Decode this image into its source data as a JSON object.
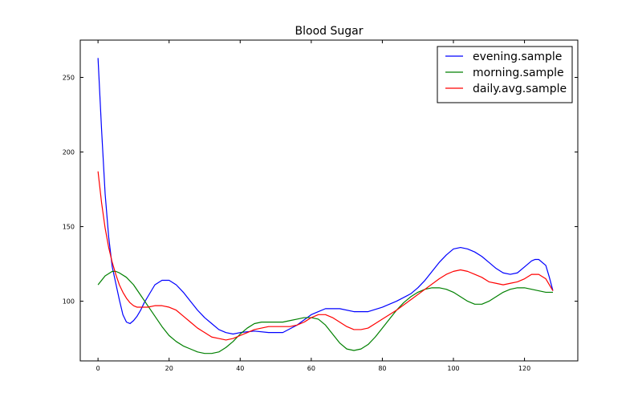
{
  "chart_data": {
    "type": "line",
    "title": "Blood Sugar",
    "xlabel": "",
    "ylabel": "",
    "xlim": [
      -5,
      135
    ],
    "ylim": [
      60,
      275
    ],
    "x_ticks": [
      0,
      20,
      40,
      60,
      80,
      100,
      120
    ],
    "x_tick_labels": [
      "0",
      "20",
      "40",
      "60",
      "80",
      "100",
      "120"
    ],
    "y_ticks": [
      100,
      150,
      200,
      250
    ],
    "y_tick_labels": [
      "100",
      "150",
      "200",
      "250"
    ],
    "grid": false,
    "legend_position": "top-right",
    "series": [
      {
        "name": "evening.sample",
        "color": "#0000ff",
        "x": [
          0,
          1,
          2,
          3,
          4,
          5,
          6,
          7,
          8,
          9,
          10,
          11,
          12,
          13,
          14,
          16,
          18,
          20,
          22,
          24,
          26,
          28,
          30,
          32,
          34,
          36,
          38,
          40,
          44,
          48,
          52,
          56,
          60,
          62,
          64,
          66,
          68,
          72,
          76,
          80,
          84,
          88,
          90,
          92,
          94,
          96,
          98,
          100,
          102,
          104,
          106,
          108,
          110,
          112,
          114,
          116,
          118,
          120,
          122,
          123,
          124,
          126,
          127,
          128
        ],
        "y": [
          263,
          215,
          172,
          143,
          123,
          112,
          101,
          91,
          86,
          85,
          87,
          90,
          94,
          99,
          103,
          111,
          114,
          114,
          111,
          106,
          100,
          94,
          89,
          85,
          81,
          79,
          78,
          79,
          80,
          79,
          79,
          84,
          91,
          93,
          95,
          95,
          95,
          93,
          93,
          96,
          100,
          105,
          109,
          114,
          120,
          126,
          131,
          135,
          136,
          135,
          133,
          130,
          126,
          122,
          119,
          118,
          119,
          123,
          127,
          128,
          128,
          124,
          116,
          107
        ]
      },
      {
        "name": "morning.sample",
        "color": "#008000",
        "x": [
          0,
          2,
          4,
          5,
          6,
          8,
          10,
          12,
          14,
          16,
          18,
          20,
          22,
          24,
          26,
          28,
          30,
          32,
          34,
          36,
          38,
          40,
          42,
          44,
          46,
          48,
          50,
          52,
          54,
          56,
          58,
          60,
          62,
          64,
          66,
          68,
          70,
          72,
          74,
          76,
          78,
          80,
          82,
          84,
          86,
          88,
          90,
          92,
          94,
          96,
          98,
          100,
          102,
          104,
          106,
          108,
          110,
          112,
          114,
          116,
          118,
          120,
          122,
          124,
          126,
          128
        ],
        "y": [
          111,
          117,
          120,
          120,
          119,
          116,
          111,
          104,
          97,
          90,
          83,
          77,
          73,
          70,
          68,
          66,
          65,
          65,
          66,
          69,
          73,
          78,
          82,
          85,
          86,
          86,
          86,
          86,
          87,
          88,
          89,
          89,
          88,
          84,
          78,
          72,
          68,
          67,
          68,
          71,
          76,
          82,
          88,
          94,
          99,
          103,
          106,
          108,
          109,
          109,
          108,
          106,
          103,
          100,
          98,
          98,
          100,
          103,
          106,
          108,
          109,
          109,
          108,
          107,
          106,
          106
        ]
      },
      {
        "name": "daily.avg.sample",
        "color": "#ff0000",
        "x": [
          0,
          1,
          2,
          3,
          4,
          5,
          6,
          7,
          8,
          9,
          10,
          11,
          12,
          14,
          16,
          18,
          20,
          22,
          24,
          26,
          28,
          30,
          32,
          34,
          36,
          38,
          40,
          42,
          44,
          46,
          48,
          50,
          52,
          54,
          56,
          58,
          60,
          62,
          64,
          66,
          68,
          70,
          72,
          74,
          76,
          78,
          80,
          84,
          88,
          92,
          96,
          98,
          100,
          102,
          104,
          106,
          108,
          110,
          112,
          114,
          116,
          118,
          120,
          122,
          124,
          126,
          128
        ],
        "y": [
          187,
          166,
          149,
          136,
          126,
          118,
          111,
          106,
          102,
          99,
          97,
          96,
          96,
          96,
          97,
          97,
          96,
          94,
          90,
          86,
          82,
          79,
          76,
          75,
          74,
          75,
          77,
          79,
          81,
          82,
          83,
          83,
          83,
          83,
          84,
          86,
          89,
          91,
          91,
          89,
          86,
          83,
          81,
          81,
          82,
          85,
          88,
          94,
          101,
          108,
          115,
          118,
          120,
          121,
          120,
          118,
          116,
          113,
          112,
          111,
          112,
          113,
          115,
          118,
          118,
          115,
          107
        ]
      }
    ]
  }
}
